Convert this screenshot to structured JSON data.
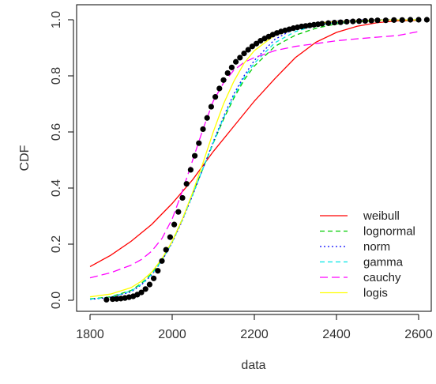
{
  "chart_data": {
    "type": "line",
    "title": "",
    "xlabel": "data",
    "ylabel": "CDF",
    "xlim": [
      1800,
      2600
    ],
    "ylim": [
      0,
      1
    ],
    "xticks": [
      1800,
      2000,
      2200,
      2400,
      2600
    ],
    "yticks": [
      0.0,
      0.2,
      0.4,
      0.6,
      0.8,
      1.0
    ],
    "xtick_labels": [
      "1800",
      "2000",
      "2200",
      "2400",
      "2600"
    ],
    "ytick_labels": [
      "0.0",
      "0.2",
      "0.4",
      "0.6",
      "0.8",
      "1.0"
    ],
    "grid": false,
    "legend_position": "bottom-right",
    "legend": [
      {
        "label": "weibull",
        "color": "#ff0000",
        "style": "solid"
      },
      {
        "label": "lognormal",
        "color": "#00cc00",
        "style": "dashed"
      },
      {
        "label": "norm",
        "color": "#0000ff",
        "style": "dotted"
      },
      {
        "label": "gamma",
        "color": "#00e5e5",
        "style": "dashed"
      },
      {
        "label": "cauchy",
        "color": "#ff00ff",
        "style": "longdash"
      },
      {
        "label": "logis",
        "color": "#ffff00",
        "style": "solid"
      }
    ],
    "empirical": {
      "name": "empirical data",
      "color": "#000000",
      "x": [
        1840,
        1855,
        1865,
        1875,
        1885,
        1895,
        1905,
        1915,
        1925,
        1935,
        1945,
        1955,
        1965,
        1975,
        1985,
        1995,
        2005,
        2015,
        2025,
        2035,
        2045,
        2055,
        2065,
        2075,
        2085,
        2095,
        2105,
        2115,
        2125,
        2135,
        2145,
        2155,
        2165,
        2175,
        2185,
        2195,
        2205,
        2215,
        2225,
        2235,
        2245,
        2255,
        2265,
        2275,
        2285,
        2295,
        2305,
        2315,
        2325,
        2335,
        2345,
        2355,
        2365,
        2380,
        2395,
        2410,
        2425,
        2440,
        2455,
        2470,
        2485,
        2500,
        2520,
        2540,
        2560,
        2580,
        2600,
        2620
      ],
      "y": [
        0.002,
        0.004,
        0.005,
        0.006,
        0.008,
        0.011,
        0.014,
        0.02,
        0.028,
        0.04,
        0.056,
        0.078,
        0.105,
        0.14,
        0.18,
        0.225,
        0.27,
        0.315,
        0.365,
        0.415,
        0.465,
        0.515,
        0.56,
        0.61,
        0.65,
        0.69,
        0.725,
        0.755,
        0.785,
        0.81,
        0.83,
        0.85,
        0.865,
        0.88,
        0.893,
        0.905,
        0.915,
        0.925,
        0.933,
        0.94,
        0.947,
        0.953,
        0.958,
        0.962,
        0.966,
        0.97,
        0.973,
        0.976,
        0.978,
        0.98,
        0.982,
        0.984,
        0.986,
        0.988,
        0.99,
        0.991,
        0.993,
        0.994,
        0.995,
        0.996,
        0.997,
        0.998,
        0.998,
        0.999,
        0.999,
        1.0,
        1.0,
        1.0
      ]
    },
    "series": [
      {
        "name": "weibull",
        "color": "#ff0000",
        "dash": "",
        "x": [
          1800,
          1850,
          1900,
          1950,
          2000,
          2050,
          2100,
          2150,
          2200,
          2250,
          2300,
          2350,
          2400,
          2450,
          2500,
          2550,
          2600
        ],
        "y": [
          0.12,
          0.16,
          0.21,
          0.27,
          0.345,
          0.43,
          0.53,
          0.62,
          0.71,
          0.79,
          0.865,
          0.92,
          0.955,
          0.977,
          0.99,
          0.996,
          0.998
        ]
      },
      {
        "name": "lognormal",
        "color": "#00cc00",
        "dash": "6,4",
        "x": [
          1800,
          1850,
          1900,
          1925,
          1950,
          1975,
          2000,
          2025,
          2050,
          2075,
          2100,
          2125,
          2150,
          2175,
          2200,
          2250,
          2300,
          2350,
          2400,
          2450,
          2500,
          2600
        ],
        "y": [
          0.005,
          0.012,
          0.035,
          0.06,
          0.095,
          0.145,
          0.21,
          0.29,
          0.38,
          0.47,
          0.56,
          0.645,
          0.72,
          0.785,
          0.835,
          0.905,
          0.945,
          0.97,
          0.985,
          0.993,
          0.997,
          0.999
        ]
      },
      {
        "name": "norm",
        "color": "#0000ff",
        "dash": "2,3",
        "x": [
          1800,
          1850,
          1900,
          1925,
          1950,
          1975,
          2000,
          2025,
          2050,
          2075,
          2100,
          2125,
          2150,
          2175,
          2200,
          2250,
          2300,
          2350,
          2400,
          2450,
          2500,
          2600
        ],
        "y": [
          0.003,
          0.01,
          0.03,
          0.055,
          0.09,
          0.14,
          0.205,
          0.285,
          0.375,
          0.47,
          0.565,
          0.655,
          0.735,
          0.8,
          0.855,
          0.93,
          0.97,
          0.988,
          0.996,
          0.999,
          1.0,
          1.0
        ]
      },
      {
        "name": "gamma",
        "color": "#00e5e5",
        "dash": "5,4",
        "x": [
          1800,
          1850,
          1900,
          1925,
          1950,
          1975,
          2000,
          2025,
          2050,
          2075,
          2100,
          2125,
          2150,
          2175,
          2200,
          2250,
          2300,
          2350,
          2400,
          2450,
          2500,
          2600
        ],
        "y": [
          0.004,
          0.011,
          0.033,
          0.057,
          0.092,
          0.142,
          0.207,
          0.287,
          0.377,
          0.47,
          0.562,
          0.65,
          0.728,
          0.793,
          0.845,
          0.918,
          0.958,
          0.98,
          0.99,
          0.996,
          0.998,
          1.0
        ]
      },
      {
        "name": "cauchy",
        "color": "#ff00ff",
        "dash": "10,5",
        "x": [
          1800,
          1850,
          1900,
          1925,
          1950,
          1975,
          2000,
          2025,
          2050,
          2075,
          2100,
          2125,
          2150,
          2175,
          2200,
          2250,
          2300,
          2350,
          2400,
          2450,
          2500,
          2550,
          2600
        ],
        "y": [
          0.08,
          0.098,
          0.125,
          0.145,
          0.175,
          0.22,
          0.29,
          0.39,
          0.5,
          0.61,
          0.71,
          0.775,
          0.82,
          0.848,
          0.865,
          0.89,
          0.905,
          0.915,
          0.925,
          0.932,
          0.938,
          0.944,
          0.958
        ]
      },
      {
        "name": "logis",
        "color": "#ffff00",
        "dash": "",
        "x": [
          1800,
          1850,
          1900,
          1925,
          1950,
          1975,
          2000,
          2025,
          2050,
          2075,
          2100,
          2125,
          2150,
          2175,
          2200,
          2250,
          2300,
          2350,
          2400,
          2450,
          2500,
          2600
        ],
        "y": [
          0.012,
          0.022,
          0.045,
          0.068,
          0.1,
          0.148,
          0.21,
          0.29,
          0.385,
          0.49,
          0.6,
          0.7,
          0.78,
          0.845,
          0.89,
          0.945,
          0.975,
          0.988,
          0.994,
          0.997,
          0.999,
          1.0
        ]
      }
    ]
  }
}
